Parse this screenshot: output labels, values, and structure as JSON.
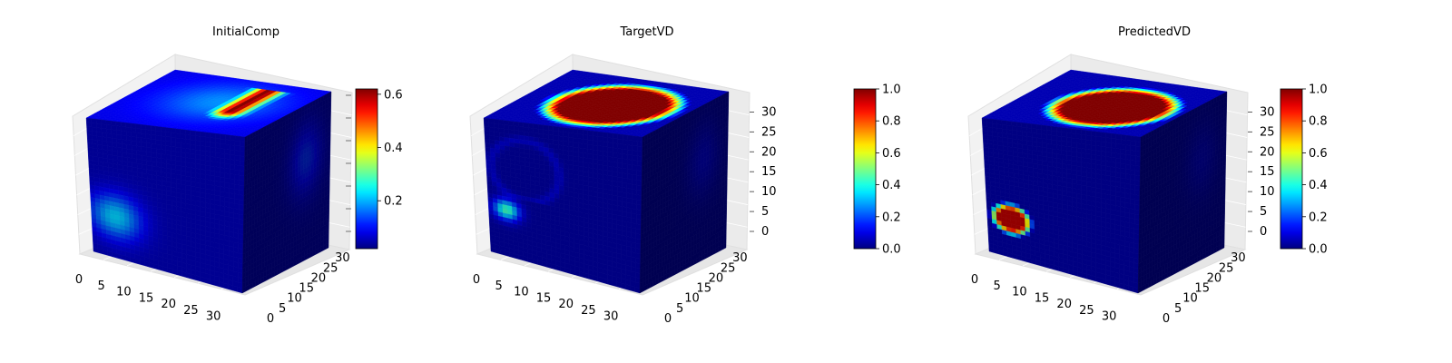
{
  "chart_data": [
    {
      "type": "voxel-3d",
      "title": "InitialComp",
      "axis_ticks": {
        "x": [
          0,
          5,
          10,
          15,
          20,
          25,
          30
        ],
        "y": [
          0,
          5,
          10,
          15,
          20,
          25,
          30
        ],
        "z": []
      },
      "grid_size": 32,
      "colorbar": {
        "min": 0.02,
        "max": 0.62,
        "ticks": [
          "0.2",
          "0.4",
          "0.6"
        ],
        "tick_values": [
          0.2,
          0.4,
          0.6
        ]
      },
      "top_face": {
        "peak_value": 0.62,
        "background_value": 0.08,
        "region_value": 0.18
      },
      "front_face": {
        "background_value": 0.05,
        "blob_value": 0.22
      },
      "side_face": {
        "background_value": 0.04,
        "blob_value": 0.12
      }
    },
    {
      "type": "voxel-3d",
      "title": "TargetVD",
      "axis_ticks": {
        "x": [
          0,
          5,
          10,
          15,
          20,
          25,
          30
        ],
        "y": [
          0,
          5,
          10,
          15,
          20,
          25,
          30
        ],
        "z": [
          0,
          5,
          10,
          15,
          20,
          25,
          30
        ]
      },
      "grid_size": 32,
      "colorbar": {
        "min": 0.0,
        "max": 1.0,
        "ticks": [
          "0.0",
          "0.2",
          "0.4",
          "0.6",
          "0.8",
          "1.0"
        ],
        "tick_values": [
          0.0,
          0.2,
          0.4,
          0.6,
          0.8,
          1.0
        ]
      },
      "top_face": {
        "peak_value": 1.0,
        "background_value": 0.05
      },
      "front_face": {
        "background_value": 0.03,
        "blob_value": 0.45
      },
      "side_face": {
        "background_value": 0.02,
        "blob_value": 0.08
      }
    },
    {
      "type": "voxel-3d",
      "title": "PredictedVD",
      "axis_ticks": {
        "x": [
          0,
          5,
          10,
          15,
          20,
          25,
          30
        ],
        "y": [
          0,
          5,
          10,
          15,
          20,
          25,
          30
        ],
        "z": [
          0,
          5,
          10,
          15,
          20,
          25,
          30
        ]
      },
      "grid_size": 32,
      "colorbar": {
        "min": 0.0,
        "max": 1.0,
        "ticks": [
          "0.0",
          "0.2",
          "0.4",
          "0.6",
          "0.8",
          "1.0"
        ],
        "tick_values": [
          0.0,
          0.2,
          0.4,
          0.6,
          0.8,
          1.0
        ]
      },
      "top_face": {
        "peak_value": 1.0,
        "background_value": 0.05
      },
      "front_face": {
        "background_value": 0.03,
        "blob_value": 0.95
      },
      "side_face": {
        "background_value": 0.02,
        "blob_value": 0.06
      }
    }
  ],
  "colormap": "jet"
}
